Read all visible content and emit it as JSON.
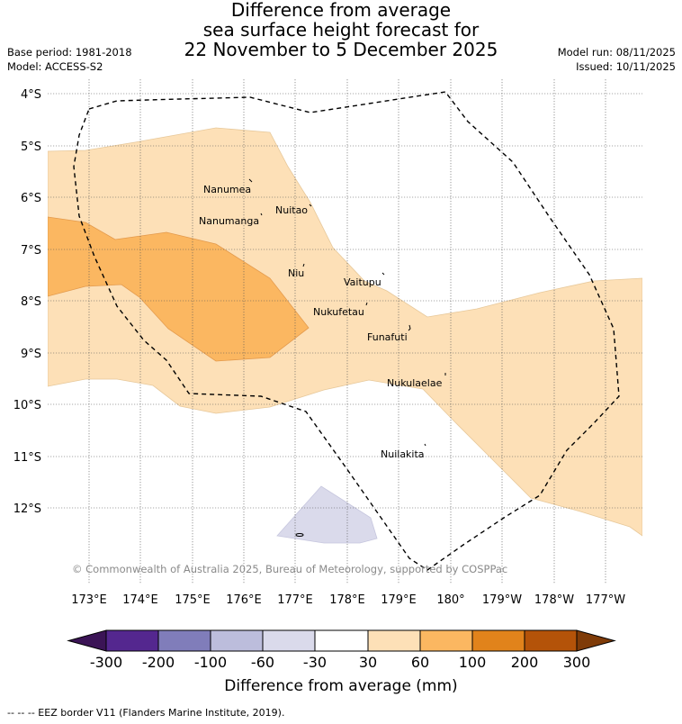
{
  "title": {
    "line1": "Difference from average",
    "line2": "sea surface height forecast for",
    "line3": "22 November to 5 December 2025"
  },
  "meta": {
    "base_period": "Base period: 1981-2018",
    "model": "Model: ACCESS-S2",
    "model_run": "Model run: 08/11/2025",
    "issued": "Issued: 10/11/2025"
  },
  "map": {
    "lat_labels": [
      "4°S",
      "5°S",
      "6°S",
      "7°S",
      "8°S",
      "9°S",
      "10°S",
      "11°S",
      "12°S"
    ],
    "lon_labels": [
      "173°E",
      "174°E",
      "175°E",
      "176°E",
      "177°E",
      "178°E",
      "179°E",
      "180°",
      "179°W",
      "178°W",
      "177°W"
    ],
    "places": [
      {
        "name": "Nanumea"
      },
      {
        "name": "Nuitao"
      },
      {
        "name": "Nanumanga"
      },
      {
        "name": "Niu"
      },
      {
        "name": "Vaitupu"
      },
      {
        "name": "Nukufetau"
      },
      {
        "name": "Funafuti"
      },
      {
        "name": "Nukulaelae"
      },
      {
        "name": "Nuilakita"
      }
    ],
    "copyright": "© Commonwealth of Australia 2025, Bureau of Meteorology, supported by COSPPac"
  },
  "colorbar": {
    "ticks": [
      "-300",
      "-200",
      "-100",
      "-60",
      "-30",
      "30",
      "60",
      "100",
      "200",
      "300"
    ],
    "colors": [
      "#3b1456",
      "#54278f",
      "#807dba",
      "#bcbddc",
      "#dadaeb",
      "#ffffff",
      "#fde0b7",
      "#fbb761",
      "#e1831b",
      "#b45309",
      "#7f3b08"
    ],
    "title": "Difference from average (mm)"
  },
  "footnote": "-- -- -- EEZ border V11 (Flanders Marine Institute, 2019)."
}
